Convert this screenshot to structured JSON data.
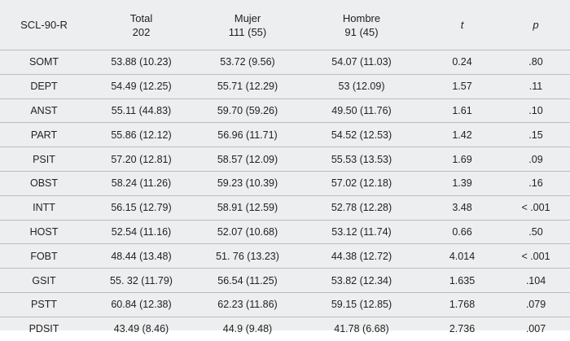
{
  "table": {
    "headers": [
      {
        "label": "SCL-90-R",
        "italic": false
      },
      {
        "label": "Total\n202",
        "italic": false
      },
      {
        "label": "Mujer\n111 (55)",
        "italic": false
      },
      {
        "label": "Hombre\n91 (45)",
        "italic": false
      },
      {
        "label": "t",
        "italic": true
      },
      {
        "label": "p",
        "italic": true
      }
    ],
    "rows": [
      [
        "SOMT",
        "53.88 (10.23)",
        "53.72 (9.56)",
        "54.07 (11.03)",
        "0.24",
        ".80"
      ],
      [
        "DEPT",
        "54.49 (12.25)",
        "55.71 (12.29)",
        "53 (12.09)",
        "1.57",
        ".11"
      ],
      [
        "ANST",
        "55.11 (44.83)",
        "59.70 (59.26)",
        "49.50 (11.76)",
        "1.61",
        ".10"
      ],
      [
        "PART",
        "55.86 (12.12)",
        "56.96 (11.71)",
        "54.52 (12.53)",
        "1.42",
        ".15"
      ],
      [
        "PSIT",
        "57.20 (12.81)",
        "58.57 (12.09)",
        "55.53 (13.53)",
        "1.69",
        ".09"
      ],
      [
        "OBST",
        "58.24 (11.26)",
        "59.23 (10.39)",
        "57.02 (12.18)",
        "1.39",
        ".16"
      ],
      [
        "INTT",
        "56.15 (12.79)",
        "58.91 (12.59)",
        "52.78 (12.28)",
        "3.48",
        "< .001"
      ],
      [
        "HOST",
        "52.54 (11.16)",
        "52.07 (10.68)",
        "53.12 (11.74)",
        "0.66",
        ".50"
      ],
      [
        "FOBT",
        "48.44 (13.48)",
        "51. 76 (13.23)",
        "44.38 (12.72)",
        "4.014",
        "< .001"
      ],
      [
        "GSIT",
        "55. 32 (11.79)",
        "56.54 (11.25)",
        "53.82 (12.34)",
        "1.635",
        ".104"
      ],
      [
        "PSTT",
        "60.84 (12.38)",
        "62.23 (11.86)",
        "59.15 (12.85)",
        "1.768",
        ".079"
      ],
      [
        "PDSIT",
        "43.49 (8.46)",
        "44.9 (9.48)",
        "41.78 (6.68)",
        "2.736",
        ".007"
      ]
    ]
  }
}
